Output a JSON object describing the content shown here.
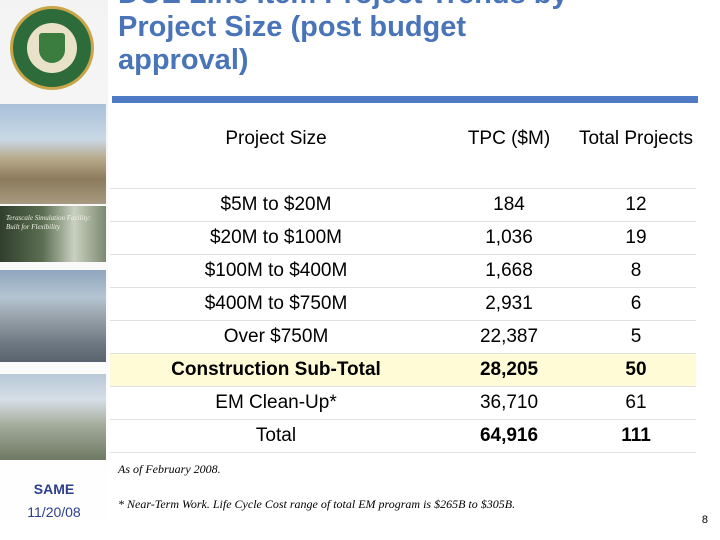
{
  "title": "DOE Line Item Project Trends by Project Size (post budget approval)",
  "sidebar": {
    "photo_caption": "Terascale Simulation Facility: Built for Flexibility",
    "org": "SAME",
    "date": "11/20/08"
  },
  "table": {
    "headers": [
      "Project Size",
      "TPC ($M)",
      "Total Projects"
    ],
    "rows": [
      [
        "$5M to $20M",
        "184",
        "12"
      ],
      [
        "$20M to $100M",
        "1,036",
        "19"
      ],
      [
        "$100M to $400M",
        "1,668",
        "8"
      ],
      [
        "$400M to $750M",
        "2,931",
        "6"
      ],
      [
        "Over $750M",
        "22,387",
        "5"
      ],
      [
        "Construction Sub-Total",
        "28,205",
        "50"
      ],
      [
        "EM Clean-Up*",
        "36,710",
        "61"
      ],
      [
        "Total",
        "64,916",
        "111"
      ]
    ]
  },
  "notes": {
    "as_of": "As of February 2008.",
    "footnote": "* Near-Term Work.  Life Cycle Cost  range of total EM program is $265B to $305B."
  },
  "page_number": "8",
  "colors": {
    "title": "#4a74b8",
    "rule": "#4f7ac4",
    "subtotal_bg": "#fffbd6",
    "sidebar_text": "#2b3f8c"
  }
}
